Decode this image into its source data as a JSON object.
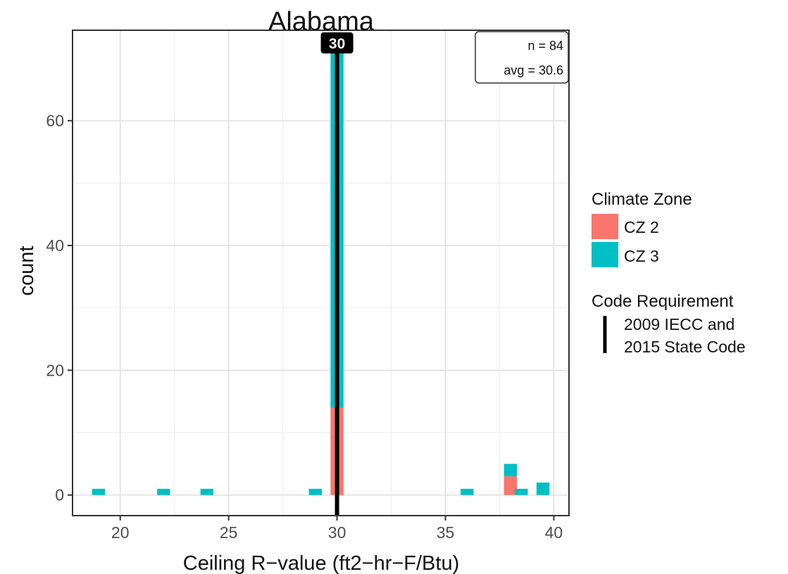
{
  "chart_data": {
    "type": "bar",
    "title": "Alabama",
    "xlabel": "Ceiling R−value (ft2−hr−F/Btu)",
    "ylabel": "count",
    "xlim": [
      17.8,
      40.7
    ],
    "ylim": [
      -3.3,
      74.5
    ],
    "xticks": [
      20,
      25,
      30,
      35,
      40
    ],
    "xtick_labels": [
      "20",
      "25",
      "30",
      "35",
      "40"
    ],
    "yticks": [
      0,
      20,
      40,
      60
    ],
    "ytick_labels": [
      "0",
      "20",
      "40",
      "60"
    ],
    "bin_width": 0.6,
    "stacked": true,
    "grid": true,
    "series": [
      {
        "name": "CZ 2",
        "color": "#F8766D",
        "bins": [
          {
            "x": 30.0,
            "count": 14
          },
          {
            "x": 38.0,
            "count": 3
          }
        ]
      },
      {
        "name": "CZ 3",
        "color": "#00BFC4",
        "bins": [
          {
            "x": 19.0,
            "count": 1
          },
          {
            "x": 22.0,
            "count": 1
          },
          {
            "x": 24.0,
            "count": 1
          },
          {
            "x": 29.0,
            "count": 1
          },
          {
            "x": 30.0,
            "count": 57
          },
          {
            "x": 36.0,
            "count": 1
          },
          {
            "x": 38.0,
            "count": 2
          },
          {
            "x": 38.5,
            "count": 1
          },
          {
            "x": 39.5,
            "count": 2
          }
        ]
      }
    ],
    "code_requirement": {
      "value": 30,
      "label": "30",
      "legend_line1": "2009 IECC and",
      "legend_line2": "2015 State Code"
    },
    "annotation": {
      "line1": "n = 84",
      "line2": "avg = 30.6"
    },
    "legend": {
      "placement": "right",
      "fill_title": "Climate Zone",
      "fill_items": [
        "CZ 2",
        "CZ 3"
      ],
      "line_title": "Code Requirement"
    }
  }
}
